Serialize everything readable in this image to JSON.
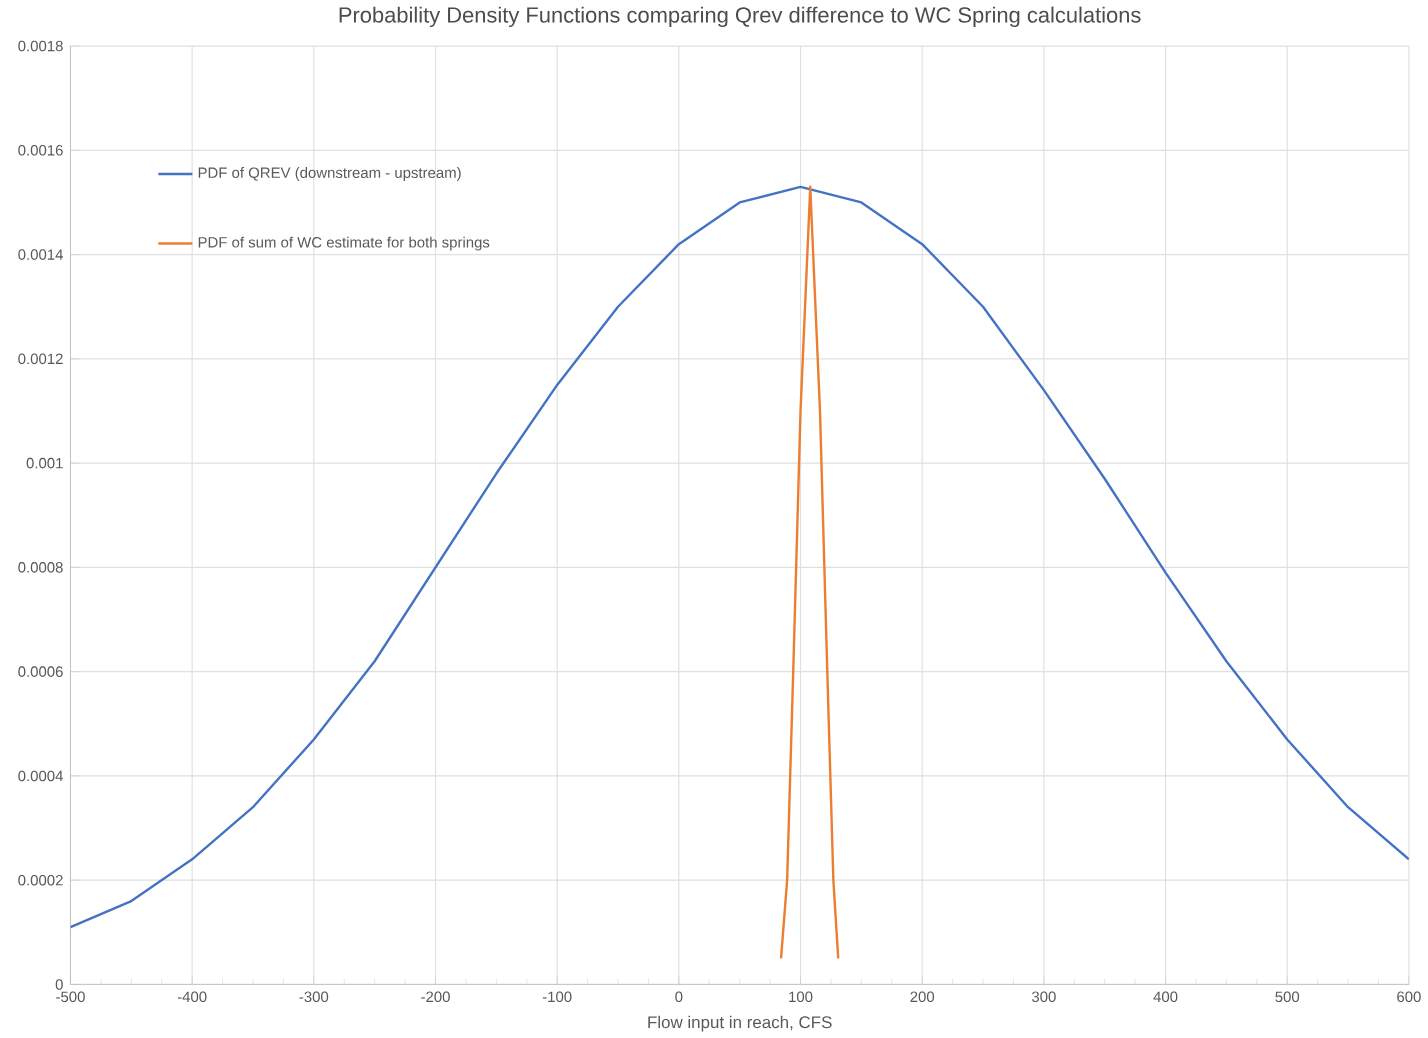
{
  "chart_data": {
    "type": "line",
    "title": "Probability Density Functions comparing Qrev difference to WC Spring calculations",
    "xlabel": "Flow input in reach, CFS",
    "xlim": [
      -500,
      600
    ],
    "xticks": [
      -500,
      -400,
      -300,
      -200,
      -100,
      0,
      100,
      200,
      300,
      400,
      500,
      600
    ],
    "ylim": [
      0,
      0.0018
    ],
    "yticks": [
      0,
      0.0002,
      0.0004,
      0.0006,
      0.0008,
      0.001,
      0.0012,
      0.0014,
      0.0016,
      0.0018
    ],
    "grid": true,
    "legend": "top left",
    "marker": "none",
    "line_style": "solid",
    "series": [
      {
        "name": "PDF of QREV (downstream - upstream)",
        "color": "#4472c4",
        "x": [
          -500,
          -450,
          -400,
          -350,
          -300,
          -250,
          -200,
          -150,
          -100,
          -50,
          0,
          50,
          100,
          150,
          200,
          250,
          300,
          350,
          400,
          450,
          500,
          550,
          600
        ],
        "values": [
          0.00011,
          0.00016,
          0.00024,
          0.00034,
          0.00047,
          0.00062,
          0.0008,
          0.00098,
          0.00115,
          0.0013,
          0.00142,
          0.0015,
          0.00153,
          0.0015,
          0.00142,
          0.0013,
          0.00114,
          0.00097,
          0.00079,
          0.00062,
          0.00047,
          0.00034,
          0.00024
        ]
      },
      {
        "name": "PDF of sum of WC estimate for both springs",
        "color": "#ed7d31",
        "x": [
          84,
          89,
          94,
          100,
          108,
          116,
          122,
          127,
          131
        ],
        "values": [
          5e-05,
          0.0002,
          0.0006,
          0.0011,
          0.00153,
          0.0011,
          0.0006,
          0.0002,
          5e-05
        ]
      }
    ]
  }
}
